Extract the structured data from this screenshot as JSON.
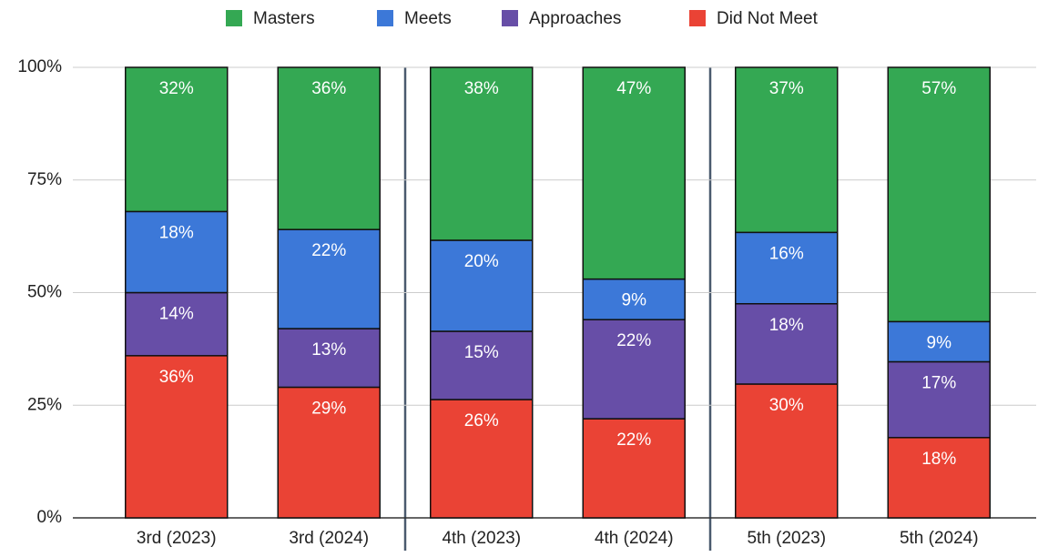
{
  "chart_data": {
    "type": "stacked_bar",
    "stacking": "percent",
    "categories": [
      "3rd (2023)",
      "3rd (2024)",
      "4th (2023)",
      "4th (2024)",
      "5th (2023)",
      "5th (2024)"
    ],
    "series": [
      {
        "name": "Masters",
        "color": "#34a853",
        "values": [
          32,
          36,
          38,
          47,
          37,
          57
        ],
        "value_labels": [
          "32%",
          "36%",
          "38%",
          "47%",
          "37%",
          "57%"
        ]
      },
      {
        "name": "Meets",
        "color": "#3c78d8",
        "values": [
          18,
          22,
          20,
          9,
          16,
          9
        ],
        "value_labels": [
          "18%",
          "22%",
          "20%",
          "9%",
          "16%",
          "9%"
        ]
      },
      {
        "name": "Approaches",
        "color": "#674ea7",
        "values": [
          14,
          13,
          15,
          22,
          18,
          17
        ],
        "value_labels": [
          "14%",
          "13%",
          "15%",
          "22%",
          "18%",
          "17%"
        ]
      },
      {
        "name": "Did Not Meet",
        "color": "#ea4335",
        "values": [
          36,
          29,
          26,
          22,
          30,
          18
        ],
        "value_labels": [
          "36%",
          "29%",
          "26%",
          "22%",
          "30%",
          "18%"
        ]
      }
    ],
    "ylim": [
      0,
      100
    ],
    "yticks": [
      {
        "value": 0,
        "label": "0%"
      },
      {
        "value": 25,
        "label": "25%"
      },
      {
        "value": 50,
        "label": "50%"
      },
      {
        "value": 75,
        "label": "75%"
      },
      {
        "value": 100,
        "label": "100%"
      }
    ],
    "grid": true,
    "legend": "top"
  }
}
